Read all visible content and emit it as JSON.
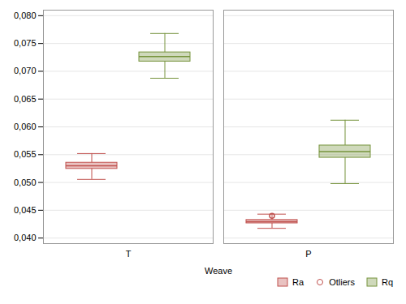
{
  "chart_data": {
    "type": "box",
    "xlabel": "Weave",
    "categories": [
      "T",
      "P"
    ],
    "series": [
      {
        "name": "Ra",
        "color": "#c0504d",
        "q1": [
          0.05245,
          0.04265
        ],
        "median": [
          0.053,
          0.04295
        ],
        "q3": [
          0.05355,
          0.04325
        ],
        "whisker_low": [
          0.05055,
          0.04175
        ],
        "whisker_high": [
          0.0552,
          0.0443
        ],
        "outliers": [
          null,
          0.044
        ]
      },
      {
        "name": "Rq",
        "color": "#76933c",
        "q1": [
          0.07175,
          0.05445
        ],
        "median": [
          0.07265,
          0.05555
        ],
        "q3": [
          0.0734,
          0.05665
        ],
        "whisker_low": [
          0.06875,
          0.0498
        ],
        "whisker_high": [
          0.0768,
          0.0612
        ],
        "outliers": [
          null,
          null
        ]
      }
    ],
    "outlier_name": "Otliers",
    "outlier_color": "#c0504d",
    "ylim": [
      0.039,
      0.081
    ],
    "yticks": [
      {
        "value": 0.04,
        "label": "0,040"
      },
      {
        "value": 0.045,
        "label": "0,045"
      },
      {
        "value": 0.05,
        "label": "0,050"
      },
      {
        "value": 0.055,
        "label": "0,055"
      },
      {
        "value": 0.06,
        "label": "0,060"
      },
      {
        "value": 0.065,
        "label": "0,065"
      },
      {
        "value": 0.07,
        "label": "0,070"
      },
      {
        "value": 0.075,
        "label": "0,075"
      },
      {
        "value": 0.08,
        "label": "0,080"
      }
    ],
    "grid": true,
    "legend": "lower right"
  }
}
